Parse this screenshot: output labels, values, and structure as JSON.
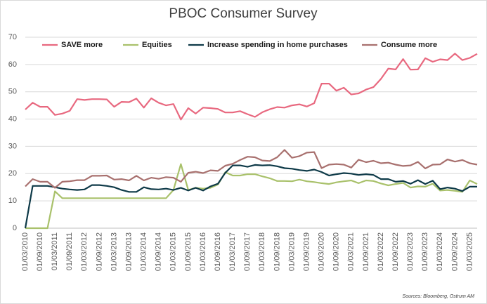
{
  "chart_data": {
    "type": "line",
    "title": "PBOC Consumer Survey",
    "source": "Sources: Bloomberg, Ostrum AM",
    "categories": [
      "01/03/2010",
      null,
      "01/09/2010",
      null,
      "01/03/2011",
      null,
      "01/09/2011",
      null,
      "01/03/2012",
      null,
      "01/09/2012",
      null,
      "01/03/2013",
      null,
      "01/09/2013",
      null,
      "01/03/2014",
      null,
      "01/09/2014",
      null,
      "01/03/2015",
      null,
      "01/09/2015",
      null,
      "01/03/2016",
      null,
      "01/09/2016",
      null,
      "01/03/2017",
      null,
      "01/09/2017",
      null,
      "01/03/2018",
      null,
      "01/09/2018",
      null,
      "01/03/2019",
      null,
      "01/09/2019",
      null,
      "01/03/2020",
      null,
      "01/09/2020",
      null,
      "01/03/2021",
      null,
      "01/09/2021",
      null,
      "01/03/2022",
      null,
      "01/09/2022",
      null,
      "01/03/2023",
      null,
      "01/09/2023",
      null,
      "01/03/2024",
      null,
      "01/09/2024",
      null,
      "01/03/2025",
      null
    ],
    "series": [
      {
        "name": "SAVE more",
        "color": "#e8687f",
        "values": [
          43.5,
          46,
          44.5,
          44.5,
          41.5,
          42,
          43,
          47.3,
          47,
          47.3,
          47.3,
          47.2,
          44.5,
          46.3,
          46.2,
          47.5,
          44.2,
          47.6,
          46,
          45,
          45.5,
          39.8,
          44,
          42,
          44.2,
          44,
          43.7,
          42.4,
          42.4,
          42.9,
          41.8,
          40.8,
          42.5,
          43.6,
          44.4,
          44.2,
          45,
          45.4,
          44.6,
          45.8,
          53,
          53,
          50.4,
          51.5,
          49,
          49.4,
          50.8,
          51.7,
          54.7,
          58.5,
          58.2,
          62,
          58.1,
          58.2,
          62.3,
          61,
          61.9,
          61.6,
          64,
          61.6,
          62.4,
          63.9
        ]
      },
      {
        "name": "Equities",
        "color": "#a9c16b",
        "values": [
          0,
          0,
          0,
          0,
          13.5,
          11,
          11,
          11,
          11,
          11,
          11,
          11,
          11,
          11,
          11,
          11,
          11,
          11,
          11,
          11,
          14,
          23.5,
          14,
          14.8,
          14.5,
          14.8,
          16,
          20.5,
          19.3,
          19.3,
          19.8,
          19.8,
          19,
          18.3,
          17.3,
          17.3,
          17.2,
          17.8,
          17.2,
          16.9,
          16.5,
          16.2,
          16.8,
          17.2,
          17.5,
          16.5,
          17.5,
          17.3,
          16.4,
          15.7,
          16.2,
          16.6,
          14.9,
          15.3,
          15.2,
          16.3,
          13.8,
          14,
          13.7,
          13.3,
          17.5,
          16.2
        ]
      },
      {
        "name": "Increase spending in home purchases",
        "color": "#0e3a48",
        "values": [
          0,
          15.5,
          15.5,
          15.5,
          15,
          14.5,
          14.2,
          14,
          14.2,
          15.8,
          15.8,
          15.5,
          15,
          14,
          13.3,
          13.3,
          15,
          14.3,
          14.2,
          14.5,
          14,
          14.8,
          13.8,
          14.8,
          13.8,
          15.3,
          16.3,
          20.3,
          23,
          23,
          22.5,
          23.2,
          23,
          23.1,
          22.7,
          22,
          21.8,
          21.3,
          21,
          21.5,
          20.6,
          19.3,
          19.8,
          20.2,
          20,
          19.5,
          19.8,
          19.5,
          18,
          18,
          17,
          17.3,
          16.3,
          17.6,
          16.2,
          17.4,
          14.3,
          14.9,
          14.5,
          13.6,
          15.2,
          15.2
        ]
      },
      {
        "name": "Consume more",
        "color": "#a8706e",
        "values": [
          15.3,
          18,
          17,
          17,
          14.8,
          17,
          17.2,
          17.6,
          17.6,
          19.2,
          19.2,
          19.3,
          17.8,
          18,
          17.5,
          19.2,
          17.5,
          18.5,
          18.1,
          18.7,
          18.5,
          17,
          20.3,
          20.7,
          20.2,
          21.2,
          21,
          22.9,
          23.6,
          25,
          26.2,
          26,
          24.8,
          24.6,
          26,
          28.7,
          25.8,
          26.4,
          27.7,
          27.9,
          22,
          23.3,
          23.5,
          23.3,
          22.2,
          25.1,
          24.2,
          24.7,
          23.8,
          24,
          23.3,
          22.8,
          23,
          24.3,
          21.9,
          23.3,
          23.4,
          25.2,
          24.4,
          25,
          23.8,
          23.3
        ]
      }
    ],
    "ylim": [
      0,
      70
    ],
    "yticks": [
      0,
      10,
      20,
      30,
      40,
      50,
      60,
      70
    ],
    "grid": true,
    "legend": "top"
  }
}
